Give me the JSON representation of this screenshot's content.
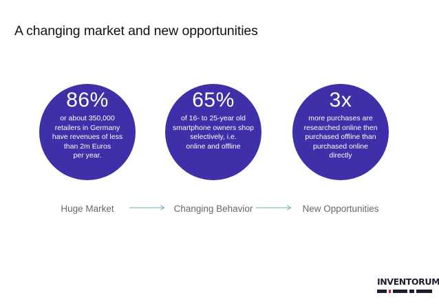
{
  "slide": {
    "title": "A changing market and new opportunities"
  },
  "stats": [
    {
      "value": "86%",
      "lines": [
        "or about 350,000",
        "retailers in Germany",
        "have revenues of less",
        "than 2m Euros",
        "per year."
      ],
      "label": "Huge Market"
    },
    {
      "value": "65%",
      "lines": [
        "of 16- to 25-year old",
        "smartphone owners shop",
        "selectively, i.e.",
        "online and offline"
      ],
      "label": "Changing Behavior"
    },
    {
      "value": "3x",
      "lines": [
        "more purchases are",
        "researched online then",
        "purchased offline than",
        "purchased online",
        "directly"
      ],
      "label": "New Opportunities"
    }
  ],
  "logo": {
    "text": "INVENTORUM"
  },
  "colors": {
    "circle": "#3d30a8",
    "arrow": "#6aaab0",
    "logo_bars": [
      "#1c1c2c",
      "#c62828",
      "#1c1c2c",
      "#1c1c2c",
      "#1c1c2c"
    ]
  }
}
